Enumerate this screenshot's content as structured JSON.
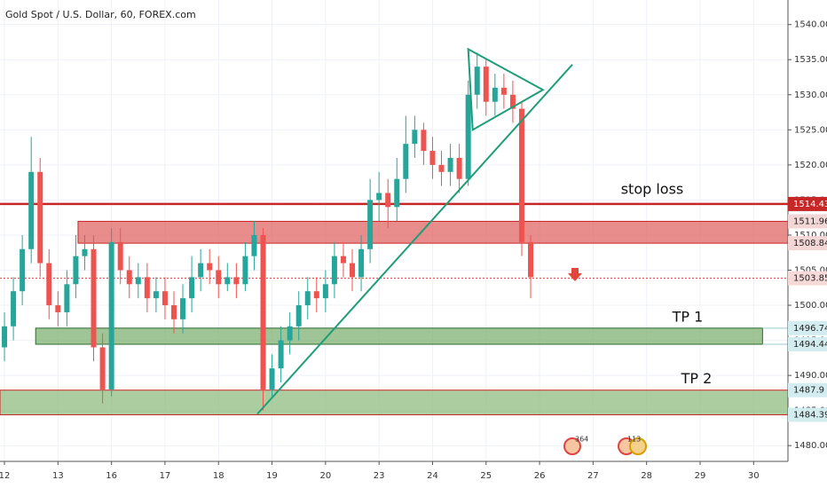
{
  "chart_data": {
    "type": "candlestick",
    "title": "Gold Spot / U.S. Dollar, 60, FOREX.com",
    "x": [
      0,
      4,
      8,
      12,
      16,
      20,
      24,
      28,
      32,
      36,
      40,
      44,
      48,
      52,
      56,
      60,
      64,
      68,
      72,
      76,
      80,
      84,
      88,
      92,
      96,
      100,
      104,
      108,
      112,
      116,
      120,
      124,
      128,
      132,
      136,
      140,
      144,
      148,
      152,
      156,
      160,
      164,
      168,
      172,
      176,
      180,
      184,
      188,
      192,
      196,
      200,
      204,
      208,
      212,
      216,
      220,
      224,
      228,
      232,
      236
    ],
    "open": [
      1494,
      1497,
      1502,
      1508,
      1519,
      1506,
      1500,
      1499,
      1503,
      1507,
      1508,
      1494,
      1488,
      1509,
      1505,
      1503,
      1504,
      1501,
      1502,
      1500,
      1498,
      1501,
      1504,
      1506,
      1505,
      1503,
      1504,
      1503,
      1507,
      1510,
      1488,
      1491,
      1495,
      1497,
      1500,
      1502,
      1501,
      1503,
      1507,
      1506,
      1504,
      1508,
      1515,
      1516,
      1514,
      1518,
      1523,
      1525,
      1522,
      1520,
      1519,
      1521,
      1518,
      1530,
      1534,
      1529,
      1531,
      1530,
      1528,
      1509
    ],
    "high": [
      1499,
      1504,
      1510,
      1524,
      1521,
      1508,
      1502,
      1505,
      1510,
      1510,
      1510,
      1496,
      1511,
      1511,
      1507,
      1506,
      1506,
      1504,
      1504,
      1502,
      1503,
      1507,
      1508,
      1508,
      1507,
      1506,
      1506,
      1509,
      1512,
      1511,
      1493,
      1497,
      1499,
      1502,
      1504,
      1504,
      1505,
      1509,
      1509,
      1508,
      1510,
      1518,
      1519,
      1518,
      1521,
      1527,
      1527,
      1526,
      1524,
      1522,
      1523,
      1523,
      1532,
      1536,
      1535,
      1533,
      1533,
      1532,
      1529,
      1510
    ],
    "low": [
      1492,
      1495,
      1500,
      1506,
      1504,
      1498,
      1497,
      1497,
      1501,
      1505,
      1492,
      1486,
      1487,
      1503,
      1501,
      1501,
      1499,
      1499,
      1498,
      1496,
      1496,
      1499,
      1502,
      1503,
      1501,
      1502,
      1501,
      1502,
      1505,
      1485,
      1487,
      1489,
      1493,
      1495,
      1498,
      1499,
      1499,
      1501,
      1504,
      1502,
      1502,
      1506,
      1512,
      1511,
      1512,
      1516,
      1521,
      1520,
      1518,
      1517,
      1517,
      1516,
      1517,
      1528,
      1527,
      1527,
      1528,
      1526,
      1507,
      1501
    ],
    "close": [
      1497,
      1502,
      1508,
      1519,
      1506,
      1500,
      1499,
      1503,
      1507,
      1508,
      1494,
      1488,
      1509,
      1505,
      1503,
      1504,
      1501,
      1502,
      1500,
      1498,
      1501,
      1504,
      1506,
      1505,
      1503,
      1504,
      1503,
      1507,
      1510,
      1488,
      1491,
      1495,
      1497,
      1500,
      1502,
      1501,
      1503,
      1507,
      1506,
      1504,
      1508,
      1515,
      1516,
      1514,
      1518,
      1523,
      1525,
      1522,
      1520,
      1519,
      1521,
      1518,
      1530,
      1534,
      1529,
      1531,
      1530,
      1528,
      1509,
      1504
    ],
    "up_color": "#26a69a",
    "down_color": "#ef5350",
    "xlim": [
      -2,
      351.4
    ],
    "ylim": [
      1477.75,
      1543.5
    ],
    "xticks": [
      {
        "value": 0,
        "label": "12"
      },
      {
        "value": 24,
        "label": "13"
      },
      {
        "value": 48,
        "label": "16"
      },
      {
        "value": 72,
        "label": "17"
      },
      {
        "value": 96,
        "label": "18"
      },
      {
        "value": 120,
        "label": "19"
      },
      {
        "value": 144,
        "label": "20"
      },
      {
        "value": 168,
        "label": "23"
      },
      {
        "value": 192,
        "label": "24"
      },
      {
        "value": 216,
        "label": "25"
      },
      {
        "value": 240,
        "label": "26"
      },
      {
        "value": 264,
        "label": "27"
      },
      {
        "value": 288,
        "label": "28"
      },
      {
        "value": 312,
        "label": "29"
      },
      {
        "value": 336,
        "label": "30"
      }
    ],
    "yticks": [
      {
        "value": 1480,
        "label": "1480.00"
      },
      {
        "value": 1485,
        "label": "1485.00"
      },
      {
        "value": 1490,
        "label": "1490.00"
      },
      {
        "value": 1495,
        "label": "1495.00"
      },
      {
        "value": 1500,
        "label": "1500.00"
      },
      {
        "value": 1505,
        "label": "1505.00"
      },
      {
        "value": 1510,
        "label": "1510.00"
      },
      {
        "value": 1515,
        "label": "1515.00"
      },
      {
        "value": 1520,
        "label": "1520.00"
      },
      {
        "value": 1525,
        "label": "1525.00"
      },
      {
        "value": 1530,
        "label": "1530.00"
      },
      {
        "value": 1535,
        "label": "1535.00"
      },
      {
        "value": 1540,
        "label": "1540.00"
      }
    ],
    "grid": true,
    "levels": [
      {
        "name": "stop loss",
        "value": 1514.43,
        "color": "#c62828",
        "dashed": false
      },
      {
        "value": 1503.85,
        "color": "#e53935",
        "dashed": true
      }
    ],
    "zones": [
      {
        "low": 1508.84,
        "high": 1511.96,
        "start": 33,
        "end": 351.4,
        "color": "#e06666",
        "border": "#c62828"
      },
      {
        "name": "TP 1",
        "low": 1494.44,
        "high": 1496.74,
        "start": 14,
        "end": 340,
        "color": "#7fb071",
        "border": "#2e6b2e"
      },
      {
        "name": "TP 2",
        "low": 1484.39,
        "high": 1487.9,
        "start": -2,
        "end": 351.4,
        "color": "#8fbc80",
        "border": "#c62828"
      }
    ],
    "trendline": [
      [
        113.4,
        1484.5
      ],
      [
        254.7,
        1534.3
      ]
    ],
    "triangle": [
      [
        208,
        1536.5
      ],
      [
        241.5,
        1530.7
      ],
      [
        210,
        1525
      ]
    ],
    "events": [
      {
        "label": "364"
      },
      {
        "label": "113"
      }
    ]
  }
}
